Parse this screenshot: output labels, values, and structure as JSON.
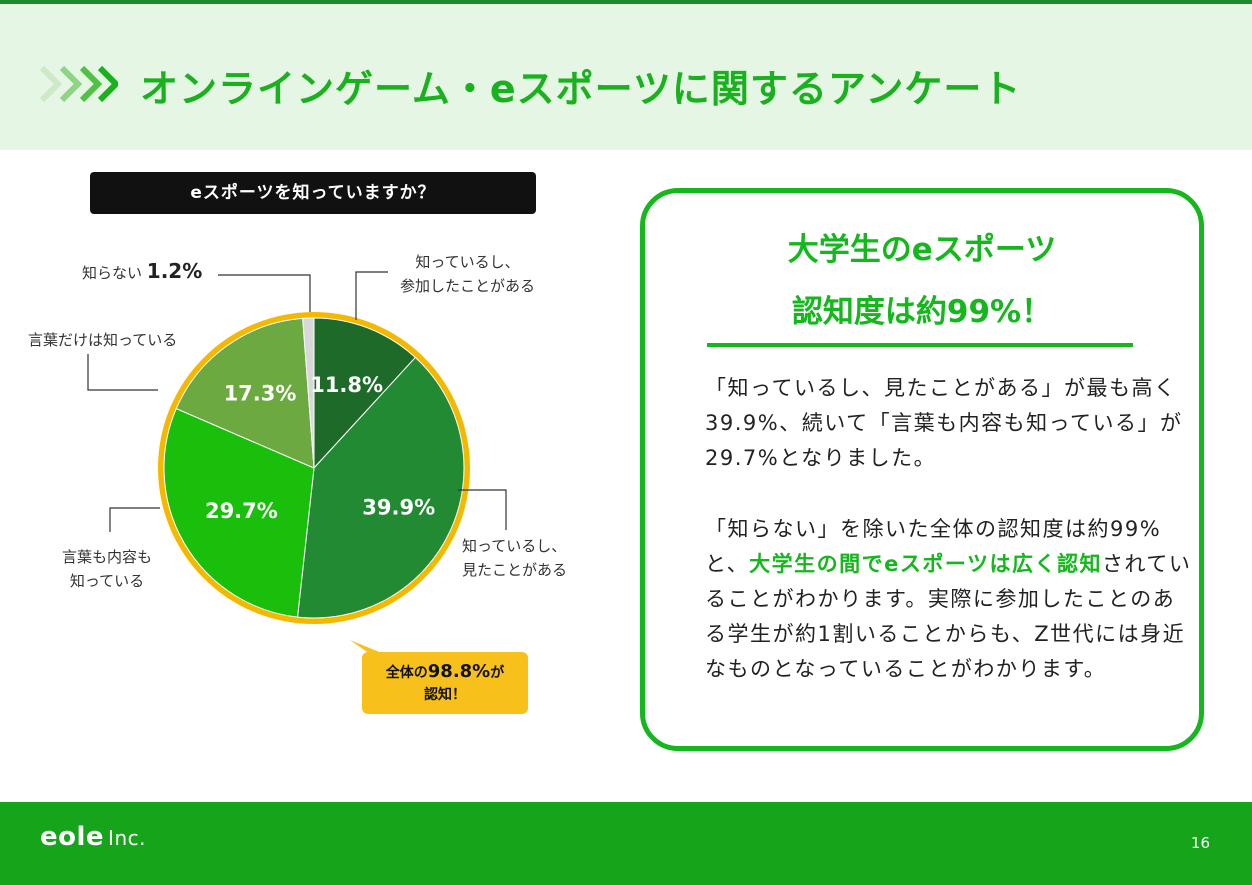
{
  "header": {
    "title": "オンラインゲーム・eスポーツに関するアンケート"
  },
  "question": "eスポーツを知っていますか？",
  "chart_data": {
    "type": "pie",
    "title": "eスポーツを知っていますか？",
    "categories": [
      "知っているし、参加したことがある",
      "知っているし、見たことがある",
      "言葉も内容も知っている",
      "言葉だけは知っている",
      "知らない"
    ],
    "values": [
      11.8,
      39.9,
      29.7,
      17.3,
      1.2
    ],
    "unit": "%",
    "data_labels": [
      "11.8%",
      "39.9%",
      "29.7%",
      "17.3%",
      "1.2%"
    ],
    "colors": [
      "#1e6b29",
      "#238a34",
      "#19bf0b",
      "#6caa41",
      "#d8d8d8"
    ],
    "start": "12 o'clock, clockwise",
    "legend": "none (callout labels)"
  },
  "labels": {
    "participated": [
      "知っているし、",
      "参加したことがある"
    ],
    "watched": [
      "知っているし、",
      "見たことがある"
    ],
    "content": [
      "言葉も内容も",
      "知っている"
    ],
    "word_only": "言葉だけは知っている",
    "unknown": "知らない",
    "unknown_value": "1.2%"
  },
  "callout": {
    "text1": "全体の",
    "value": "98.8%",
    "text2": "が",
    "text3": "認知！",
    "color": "#f8c01a"
  },
  "summary": {
    "head1": "大学生のeスポーツ",
    "head2": "認知度は約99%！",
    "p1": "「知っているし、見たことがある」が最も高く39.9%、続いて「言葉も内容も知っている」が29.7%となりました。",
    "p2_a": "「知らない」を除いた全体の認知度は約99%と、",
    "p2_hl": "大学生の間でeスポーツは広く認知",
    "p2_b": "されていることがわかります。実際に参加したことのある学生が約1割いることからも、Z世代には身近なものとなっていることがわかります。"
  },
  "footer": {
    "logo": "eole",
    "logo_suffix": "Inc.",
    "page": "16"
  },
  "colors": {
    "accent": "#14b71c",
    "header_bg": "#e6f6e4",
    "footer_bg": "#15a41a",
    "ring": "#f5b800"
  }
}
